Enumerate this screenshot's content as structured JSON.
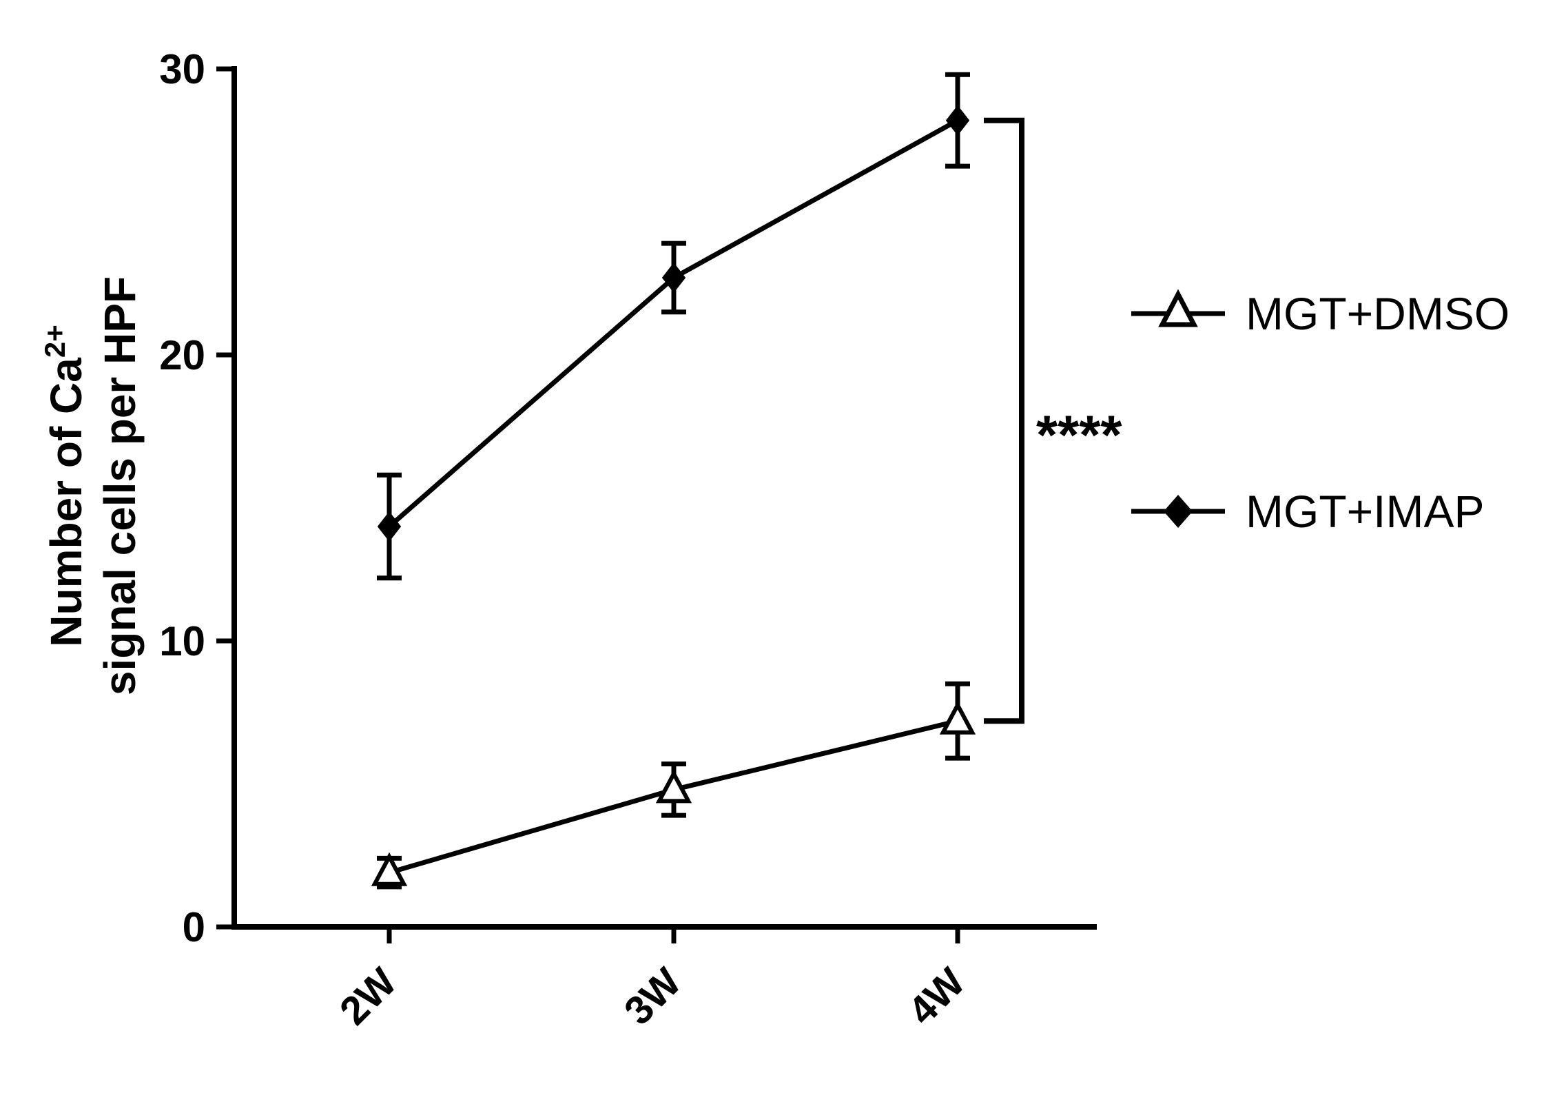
{
  "figure": {
    "background": "#ffffff"
  },
  "chart_data": {
    "type": "line",
    "title": "",
    "categories": [
      "2W",
      "3W",
      "4W"
    ],
    "series": [
      {
        "name": "MGT+DMSO",
        "marker": "open-triangle",
        "values": [
          1.9,
          4.8,
          7.2
        ],
        "errors": [
          0.5,
          0.9,
          1.3
        ]
      },
      {
        "name": "MGT+IMAP",
        "marker": "filled-diamond",
        "values": [
          14.0,
          22.7,
          28.2
        ],
        "errors": [
          1.8,
          1.2,
          1.6
        ]
      }
    ],
    "ylabel": {
      "line1": "Number of Ca",
      "sup": "2+",
      "line2": "signal cells per HPF"
    },
    "xlabel": "",
    "yticks": [
      0,
      10,
      20,
      30
    ],
    "ylim": [
      0,
      30
    ],
    "grid": false,
    "legend_position": "right",
    "significance": {
      "label": "****",
      "between": [
        "MGT+IMAP",
        "MGT+DMSO"
      ],
      "at_category": "4W"
    },
    "colors": {
      "line": "#000000",
      "background": "#ffffff"
    }
  },
  "legend": {
    "items": [
      {
        "label": "MGT+DMSO",
        "marker": "open-triangle"
      },
      {
        "label": "MGT+IMAP",
        "marker": "filled-diamond"
      }
    ]
  }
}
